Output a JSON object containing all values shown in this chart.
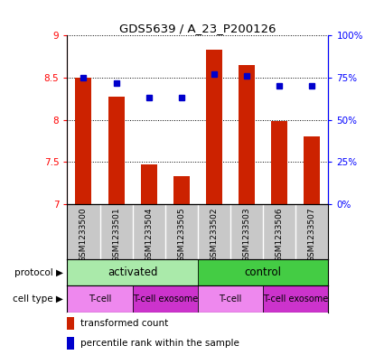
{
  "title": "GDS5639 / A_23_P200126",
  "samples": [
    "GSM1233500",
    "GSM1233501",
    "GSM1233504",
    "GSM1233505",
    "GSM1233502",
    "GSM1233503",
    "GSM1233506",
    "GSM1233507"
  ],
  "red_values": [
    8.5,
    8.27,
    7.47,
    7.33,
    8.83,
    8.65,
    7.99,
    7.8
  ],
  "blue_values": [
    75,
    72,
    63,
    63,
    77,
    76,
    70,
    70
  ],
  "ylim_left": [
    7,
    9
  ],
  "ylim_right": [
    0,
    100
  ],
  "yticks_left": [
    7,
    7.5,
    8,
    8.5,
    9
  ],
  "yticks_right": [
    0,
    25,
    50,
    75,
    100
  ],
  "ytick_labels_right": [
    "0%",
    "25%",
    "50%",
    "75%",
    "100%"
  ],
  "bar_color": "#cc2200",
  "dot_color": "#0000cc",
  "names_bg": "#c8c8c8",
  "names_sep": "#ffffff",
  "protocol_activated_color": "#aaeaaa",
  "protocol_control_color": "#44cc44",
  "cell_tcell_color": "#ee88ee",
  "cell_exosome_color": "#cc33cc",
  "legend_red": "transformed count",
  "legend_blue": "percentile rank within the sample",
  "row_label_protocol": "protocol",
  "row_label_celltype": "cell type"
}
